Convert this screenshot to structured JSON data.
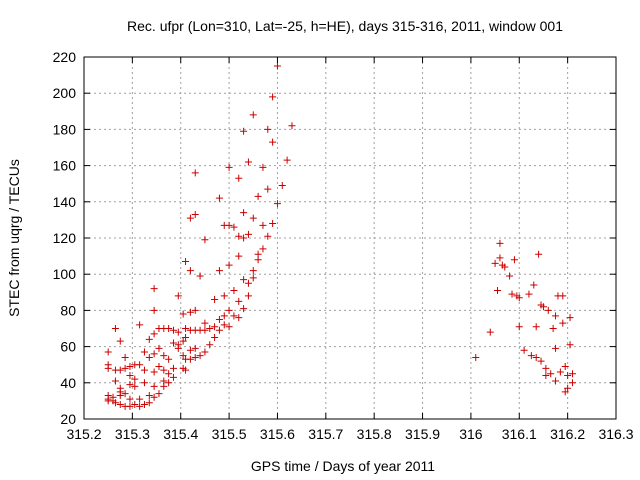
{
  "chart_data": {
    "type": "scatter",
    "title": "Rec. ufpr (Lon=310, Lat=-25, h=HE), days 315-316, 2011, window 001",
    "xlabel": "GPS time / Days of year 2011",
    "ylabel": "STEC from uqrg / TECUs",
    "xlim": [
      315.2,
      316.3
    ],
    "ylim": [
      20,
      220
    ],
    "xticks": [
      "315.2",
      "315.3",
      "315.4",
      "315.5",
      "315.6",
      "315.7",
      "315.8",
      "315.9",
      "316",
      "316.1",
      "316.2",
      "316.3"
    ],
    "yticks": [
      "20",
      "40",
      "60",
      "80",
      "100",
      "120",
      "140",
      "160",
      "180",
      "200",
      "220"
    ],
    "grid": true,
    "marker": "+",
    "color": "#cc0000",
    "series": [
      {
        "points": [
          [
            315.25,
            57
          ],
          [
            315.25,
            50
          ],
          [
            315.25,
            48
          ],
          [
            315.25,
            33
          ],
          [
            315.25,
            31
          ],
          [
            315.25,
            30
          ],
          [
            315.26,
            32
          ],
          [
            315.26,
            30
          ],
          [
            315.265,
            70
          ],
          [
            315.265,
            47
          ],
          [
            315.265,
            41
          ],
          [
            315.265,
            29
          ],
          [
            315.275,
            63
          ],
          [
            315.275,
            47
          ],
          [
            315.275,
            37
          ],
          [
            315.275,
            35
          ],
          [
            315.275,
            33
          ],
          [
            315.275,
            28
          ],
          [
            315.285,
            54
          ],
          [
            315.285,
            48
          ],
          [
            315.285,
            34
          ],
          [
            315.285,
            27
          ],
          [
            315.295,
            49
          ],
          [
            315.295,
            44
          ],
          [
            315.295,
            39
          ],
          [
            315.295,
            31
          ],
          [
            315.295,
            27
          ],
          [
            315.305,
            50
          ],
          [
            315.305,
            42
          ],
          [
            315.305,
            38
          ],
          [
            315.305,
            28
          ],
          [
            315.315,
            72
          ],
          [
            315.315,
            50
          ],
          [
            315.315,
            31
          ],
          [
            315.315,
            27
          ],
          [
            315.325,
            57
          ],
          [
            315.325,
            47
          ],
          [
            315.325,
            40
          ],
          [
            315.325,
            28
          ],
          [
            315.335,
            64
          ],
          [
            315.335,
            54
          ],
          [
            315.335,
            33
          ],
          [
            315.335,
            29
          ],
          [
            315.345,
            92
          ],
          [
            315.345,
            80
          ],
          [
            315.345,
            67
          ],
          [
            315.345,
            56
          ],
          [
            315.345,
            46
          ],
          [
            315.345,
            38
          ],
          [
            315.345,
            32
          ],
          [
            315.355,
            70
          ],
          [
            315.355,
            59
          ],
          [
            315.355,
            49
          ],
          [
            315.355,
            34
          ],
          [
            315.365,
            70
          ],
          [
            315.365,
            55
          ],
          [
            315.365,
            47
          ],
          [
            315.365,
            41
          ],
          [
            315.365,
            38
          ],
          [
            315.375,
            70
          ],
          [
            315.375,
            53
          ],
          [
            315.375,
            45
          ],
          [
            315.375,
            40
          ],
          [
            315.385,
            69
          ],
          [
            315.385,
            62
          ],
          [
            315.385,
            48
          ],
          [
            315.385,
            43
          ],
          [
            315.395,
            88
          ],
          [
            315.395,
            68
          ],
          [
            315.395,
            61
          ],
          [
            315.395,
            59
          ],
          [
            315.405,
            78
          ],
          [
            315.405,
            63
          ],
          [
            315.405,
            55
          ],
          [
            315.405,
            48
          ],
          [
            315.41,
            107
          ],
          [
            315.41,
            70
          ],
          [
            315.41,
            65
          ],
          [
            315.41,
            53
          ],
          [
            315.41,
            47
          ],
          [
            315.42,
            131
          ],
          [
            315.42,
            102
          ],
          [
            315.42,
            79
          ],
          [
            315.42,
            69
          ],
          [
            315.42,
            58
          ],
          [
            315.42,
            53
          ],
          [
            315.43,
            156
          ],
          [
            315.43,
            133
          ],
          [
            315.43,
            80
          ],
          [
            315.43,
            69
          ],
          [
            315.43,
            59
          ],
          [
            315.43,
            54
          ],
          [
            315.44,
            99
          ],
          [
            315.44,
            69
          ],
          [
            315.44,
            55
          ],
          [
            315.45,
            119
          ],
          [
            315.45,
            73
          ],
          [
            315.45,
            69
          ],
          [
            315.45,
            57
          ],
          [
            315.46,
            70
          ],
          [
            315.46,
            61
          ],
          [
            315.47,
            86
          ],
          [
            315.47,
            71
          ],
          [
            315.47,
            65
          ],
          [
            315.48,
            142
          ],
          [
            315.48,
            102
          ],
          [
            315.48,
            75
          ],
          [
            315.48,
            69
          ],
          [
            315.49,
            127
          ],
          [
            315.49,
            88
          ],
          [
            315.49,
            77
          ],
          [
            315.49,
            72
          ],
          [
            315.5,
            159
          ],
          [
            315.5,
            127
          ],
          [
            315.5,
            105
          ],
          [
            315.5,
            80
          ],
          [
            315.5,
            71
          ],
          [
            315.51,
            126
          ],
          [
            315.51,
            91
          ],
          [
            315.51,
            77
          ],
          [
            315.52,
            153
          ],
          [
            315.52,
            121
          ],
          [
            315.52,
            110
          ],
          [
            315.52,
            85
          ],
          [
            315.52,
            76
          ],
          [
            315.53,
            179
          ],
          [
            315.53,
            134
          ],
          [
            315.53,
            120
          ],
          [
            315.53,
            97
          ],
          [
            315.53,
            81
          ],
          [
            315.54,
            162
          ],
          [
            315.54,
            122
          ],
          [
            315.54,
            95
          ],
          [
            315.54,
            88
          ],
          [
            315.55,
            188
          ],
          [
            315.55,
            131
          ],
          [
            315.55,
            102
          ],
          [
            315.55,
            98
          ],
          [
            315.56,
            143
          ],
          [
            315.56,
            111
          ],
          [
            315.56,
            108
          ],
          [
            315.57,
            159
          ],
          [
            315.57,
            127
          ],
          [
            315.57,
            114
          ],
          [
            315.58,
            180
          ],
          [
            315.58,
            147
          ],
          [
            315.58,
            121
          ],
          [
            315.59,
            198
          ],
          [
            315.59,
            173
          ],
          [
            315.59,
            128
          ],
          [
            315.6,
            215
          ],
          [
            315.6,
            139
          ],
          [
            315.61,
            149
          ],
          [
            315.62,
            163
          ],
          [
            315.63,
            182
          ],
          [
            316.01,
            54
          ],
          [
            316.04,
            68
          ],
          [
            316.05,
            106
          ],
          [
            316.055,
            91
          ],
          [
            316.06,
            117
          ],
          [
            316.06,
            109
          ],
          [
            316.065,
            105
          ],
          [
            316.07,
            104
          ],
          [
            316.08,
            99
          ],
          [
            316.085,
            89
          ],
          [
            316.09,
            108
          ],
          [
            316.095,
            88
          ],
          [
            316.1,
            71
          ],
          [
            316.1,
            87
          ],
          [
            316.11,
            58
          ],
          [
            316.12,
            89
          ],
          [
            316.125,
            55
          ],
          [
            316.13,
            94
          ],
          [
            316.135,
            71
          ],
          [
            316.135,
            54
          ],
          [
            316.14,
            111
          ],
          [
            316.145,
            83
          ],
          [
            316.145,
            52
          ],
          [
            316.15,
            82
          ],
          [
            316.155,
            48
          ],
          [
            316.155,
            44
          ],
          [
            316.16,
            80
          ],
          [
            316.165,
            45
          ],
          [
            316.17,
            70
          ],
          [
            316.175,
            77
          ],
          [
            316.175,
            59
          ],
          [
            316.175,
            41
          ],
          [
            316.18,
            88
          ],
          [
            316.185,
            46
          ],
          [
            316.19,
            88
          ],
          [
            316.19,
            73
          ],
          [
            316.195,
            49
          ],
          [
            316.195,
            35
          ],
          [
            316.2,
            44
          ],
          [
            316.2,
            37
          ],
          [
            316.205,
            76
          ],
          [
            316.205,
            61
          ],
          [
            316.21,
            45
          ],
          [
            316.21,
            40
          ]
        ]
      }
    ]
  }
}
